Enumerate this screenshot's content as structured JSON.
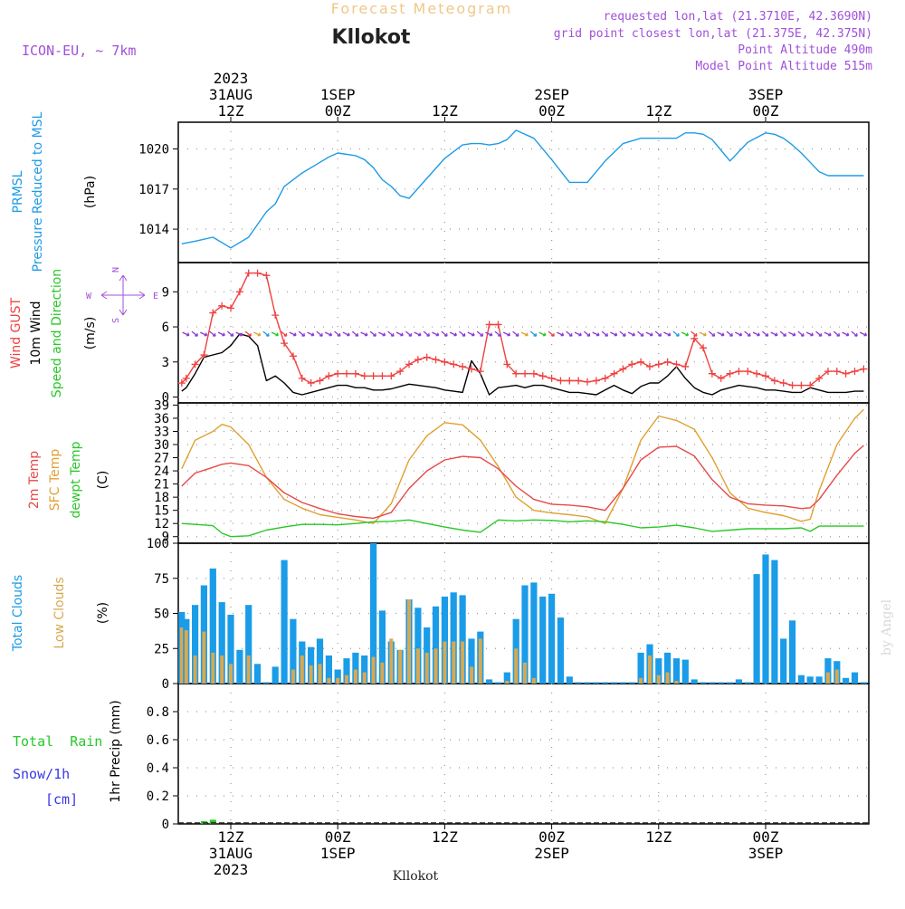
{
  "header": {
    "subtitle": "Forecast Meteogram",
    "location": "Kllokot",
    "model": "ICON-EU, ~ 7km",
    "requested": "requested lon,lat (21.3710E, 42.3690N)",
    "gridpoint": "grid point closest lon,lat (21.375E, 42.375N)",
    "point_altitude": "Point Altitude 490m",
    "model_altitude": "Model Point Altitude 515m",
    "footer_location": "Kllokot",
    "watermark": "by Angel"
  },
  "time_axis": {
    "ticks": [
      {
        "t": 0,
        "label": "12Z",
        "date": "31AUG",
        "year": "2023"
      },
      {
        "t": 12,
        "label": "00Z",
        "date": "1SEP"
      },
      {
        "t": 24,
        "label": "12Z"
      },
      {
        "t": 36,
        "label": "00Z",
        "date": "2SEP"
      },
      {
        "t": 48,
        "label": "12Z"
      },
      {
        "t": 60,
        "label": "00Z",
        "date": "3SEP"
      }
    ]
  },
  "panels": {
    "pressure": {
      "ylabel_color_1": "PRMSL",
      "ylabel_color_2": "Pressure Reduced to MSL",
      "unit": "(hPa)"
    },
    "wind": {
      "label_gust": "Wind GUST",
      "label_wind": "10m Wind",
      "label_dir": "Speed and Direction",
      "unit": "(m/s)",
      "compass_n": "N",
      "compass_s": "S",
      "compass_w": "W",
      "compass_e": "E"
    },
    "temp": {
      "label_2m": "2m Temp",
      "label_sfc": "SFC Temp",
      "label_dew": "dewpt Temp",
      "unit": "(C)"
    },
    "clouds": {
      "label_total": "Total Clouds",
      "label_low": "Low Clouds",
      "unit": "(%)"
    },
    "precip": {
      "label_rain": "Total  Rain",
      "label_snow": "Snow/1h",
      "label_snow_unit": "[cm]",
      "ylabel": "1hr Precip (mm)"
    }
  },
  "colors": {
    "pressure": "#1e9be6",
    "gust": "#f04040",
    "wind": "#000000",
    "t2m": "#e84848",
    "sfc": "#e0a030",
    "dew": "#28c828",
    "total_clouds": "#1a9ce8",
    "low_clouds": "#d8a850",
    "rain": "#28c828",
    "snow": "#3838e8",
    "arrow_purple": "#8c3cd0",
    "text_purple": "#a050d8",
    "subtitle": "#f0c888"
  },
  "chart_data": [
    {
      "type": "line",
      "title": "PRMSL",
      "ylabel": "(hPa)",
      "ylim": [
        1011.5,
        1022.0
      ],
      "yticks": [
        1014,
        1017,
        1020
      ],
      "x_hours": [
        -5.5,
        -4,
        -2,
        0,
        2,
        4,
        5,
        6,
        8,
        10,
        11,
        12,
        13,
        14,
        15,
        16,
        17,
        18,
        19,
        20,
        22,
        24,
        26,
        27,
        28,
        29,
        30,
        31,
        32,
        34,
        36,
        38,
        40,
        42,
        44,
        46,
        48,
        50,
        51,
        52,
        53,
        54,
        55,
        56,
        58,
        60,
        61,
        62,
        63,
        64,
        65,
        66,
        67,
        68,
        69,
        70,
        71
      ],
      "series": [
        {
          "name": "PRMSL",
          "values": [
            1012.9,
            1013.1,
            1013.4,
            1012.6,
            1013.4,
            1015.3,
            1015.9,
            1017.2,
            1018.2,
            1019.0,
            1019.4,
            1019.7,
            1019.6,
            1019.5,
            1019.2,
            1018.6,
            1017.7,
            1017.2,
            1016.5,
            1016.3,
            1017.8,
            1019.3,
            1020.3,
            1020.4,
            1020.4,
            1020.3,
            1020.4,
            1020.7,
            1021.4,
            1020.8,
            1019.2,
            1017.5,
            1017.5,
            1019.1,
            1020.4,
            1020.8,
            1020.8,
            1020.8,
            1021.2,
            1021.2,
            1021.1,
            1020.7,
            1019.9,
            1019.1,
            1020.5,
            1021.2,
            1021.1,
            1020.8,
            1020.3,
            1019.7,
            1019.0,
            1018.3,
            1018.0,
            1018.0,
            1018.0,
            1018.0,
            1018.0
          ]
        }
      ]
    },
    {
      "type": "line",
      "title": "Wind",
      "ylabel": "(m/s)",
      "ylim": [
        -0.5,
        11.5
      ],
      "yticks": [
        0,
        3,
        6,
        9
      ],
      "x_hours": [
        -5.5,
        -5,
        -4,
        -3,
        -2,
        -1,
        0,
        1,
        2,
        3,
        4,
        5,
        6,
        7,
        8,
        9,
        10,
        11,
        12,
        13,
        14,
        15,
        16,
        17,
        18,
        19,
        20,
        21,
        22,
        23,
        24,
        25,
        26,
        27,
        28,
        29,
        30,
        31,
        32,
        33,
        34,
        35,
        36,
        37,
        38,
        39,
        40,
        41,
        42,
        43,
        44,
        45,
        46,
        47,
        48,
        49,
        50,
        51,
        52,
        53,
        54,
        55,
        56,
        57,
        58,
        59,
        60,
        61,
        62,
        63,
        64,
        65,
        66,
        67,
        68,
        69,
        70,
        71
      ],
      "series": [
        {
          "name": "Wind GUST",
          "values": [
            1.2,
            1.6,
            2.8,
            3.6,
            7.2,
            7.8,
            7.6,
            9.0,
            10.6,
            10.6,
            10.4,
            7.0,
            4.6,
            3.5,
            1.6,
            1.2,
            1.4,
            1.8,
            2.0,
            2.0,
            2.0,
            1.8,
            1.8,
            1.8,
            1.8,
            2.2,
            2.8,
            3.2,
            3.4,
            3.2,
            3.0,
            2.8,
            2.6,
            2.4,
            2.2,
            6.2,
            6.2,
            2.8,
            2.0,
            2.0,
            2.0,
            1.8,
            1.6,
            1.4,
            1.4,
            1.4,
            1.3,
            1.4,
            1.6,
            2.0,
            2.4,
            2.8,
            3.0,
            2.6,
            2.8,
            3.0,
            2.8,
            2.6,
            5.0,
            4.2,
            2.0,
            1.6,
            2.0,
            2.2,
            2.2,
            2.0,
            1.8,
            1.4,
            1.2,
            1.0,
            1.0,
            1.0,
            1.6,
            2.2,
            2.2,
            2.0,
            2.2,
            2.4
          ]
        },
        {
          "name": "10m Wind",
          "values": [
            0.5,
            0.8,
            2.0,
            3.4,
            3.6,
            3.8,
            4.4,
            5.4,
            5.2,
            4.4,
            1.4,
            1.8,
            1.2,
            0.4,
            0.2,
            0.4,
            0.6,
            0.8,
            1.0,
            1.0,
            0.8,
            0.8,
            0.6,
            0.6,
            0.7,
            0.9,
            1.1,
            1.0,
            0.9,
            0.8,
            0.6,
            0.5,
            0.4,
            3.1,
            2.0,
            0.2,
            0.8,
            0.9,
            1.0,
            0.8,
            1.0,
            1.0,
            0.8,
            0.6,
            0.4,
            0.4,
            0.3,
            0.2,
            0.6,
            1.0,
            0.6,
            0.3,
            0.9,
            1.2,
            1.2,
            1.8,
            2.6,
            1.6,
            0.8,
            0.4,
            0.2,
            0.6,
            0.8,
            1.0,
            0.9,
            0.8,
            0.6,
            0.6,
            0.5,
            0.4,
            0.4,
            0.8,
            0.6,
            0.4,
            0.4,
            0.4,
            0.5,
            0.5
          ]
        }
      ]
    },
    {
      "type": "line",
      "title": "Temperature",
      "ylabel": "(C)",
      "ylim": [
        7.5,
        39.5
      ],
      "yticks": [
        9,
        12,
        15,
        18,
        21,
        24,
        27,
        30,
        33,
        36,
        39
      ],
      "x_hours": [
        -5.5,
        -4,
        -2,
        -1,
        0,
        2,
        4,
        6,
        8,
        10,
        12,
        14,
        16,
        18,
        20,
        22,
        24,
        26,
        28,
        30,
        32,
        34,
        36,
        38,
        40,
        42,
        44,
        46,
        48,
        50,
        52,
        54,
        56,
        58,
        60,
        62,
        64,
        65,
        66,
        68,
        70,
        71
      ],
      "series": [
        {
          "name": "2m Temp",
          "values": [
            20.5,
            23.5,
            24.8,
            25.5,
            25.8,
            25.2,
            22.5,
            19.0,
            16.8,
            15.4,
            14.2,
            13.6,
            13.2,
            14.5,
            20.0,
            24.0,
            26.5,
            27.3,
            27.0,
            24.5,
            20.5,
            17.5,
            16.4,
            16.2,
            15.8,
            15.0,
            20.0,
            26.5,
            29.4,
            29.6,
            27.4,
            22.0,
            18.0,
            16.5,
            16.2,
            16.0,
            15.4,
            15.6,
            17.5,
            23.0,
            28.0,
            29.8
          ]
        },
        {
          "name": "SFC Temp",
          "values": [
            24.5,
            31.0,
            33.0,
            34.6,
            34.0,
            30.0,
            22.5,
            17.5,
            15.5,
            14.0,
            13.4,
            12.8,
            12.0,
            16.5,
            26.5,
            32.0,
            35.0,
            34.5,
            31.0,
            25.0,
            18.0,
            15.0,
            14.4,
            14.0,
            13.5,
            12.0,
            20.0,
            31.0,
            36.5,
            35.5,
            33.5,
            27.0,
            19.0,
            15.5,
            14.5,
            13.8,
            12.5,
            13.0,
            19.5,
            30.0,
            36.0,
            38.0
          ]
        },
        {
          "name": "dewpt Temp",
          "values": [
            12.0,
            11.8,
            11.5,
            9.8,
            9.0,
            9.2,
            10.5,
            11.2,
            11.8,
            11.8,
            11.7,
            12.0,
            12.4,
            12.5,
            12.8,
            12.0,
            11.2,
            10.5,
            10.0,
            12.8,
            12.6,
            12.8,
            12.7,
            12.4,
            12.6,
            12.4,
            11.8,
            11.0,
            11.2,
            11.6,
            11.0,
            10.2,
            10.5,
            10.8,
            10.8,
            10.8,
            11.0,
            10.2,
            11.4,
            11.4,
            11.4,
            11.4
          ]
        }
      ]
    },
    {
      "type": "bar",
      "title": "Clouds",
      "ylabel": "(%)",
      "ylim": [
        0,
        100
      ],
      "yticks": [
        0,
        25,
        50,
        75,
        100
      ],
      "x_hours": [
        -5.5,
        -5,
        -4,
        -3,
        -2,
        -1,
        0,
        1,
        2,
        3,
        4,
        5,
        6,
        7,
        8,
        9,
        10,
        11,
        12,
        13,
        14,
        15,
        16,
        17,
        18,
        19,
        20,
        21,
        22,
        23,
        24,
        25,
        26,
        27,
        28,
        29,
        30,
        31,
        32,
        33,
        34,
        35,
        36,
        37,
        38,
        39,
        40,
        41,
        42,
        43,
        44,
        45,
        46,
        47,
        48,
        49,
        50,
        51,
        52,
        53,
        54,
        55,
        56,
        57,
        58,
        59,
        60,
        61,
        62,
        63,
        64,
        65,
        66,
        67,
        68,
        69,
        70,
        71
      ],
      "series": [
        {
          "name": "Total Clouds",
          "values": [
            51,
            46,
            56,
            70,
            82,
            58,
            49,
            24,
            56,
            14,
            0,
            12,
            88,
            46,
            30,
            26,
            32,
            20,
            10,
            18,
            22,
            20,
            100,
            52,
            30,
            24,
            60,
            54,
            40,
            55,
            62,
            65,
            63,
            32,
            37,
            3,
            0,
            8,
            46,
            70,
            72,
            62,
            64,
            47,
            5,
            0,
            0,
            0,
            0,
            0,
            0,
            0,
            22,
            28,
            18,
            22,
            18,
            17,
            3,
            0,
            0,
            0,
            0,
            3,
            1,
            78,
            92,
            88,
            32,
            45,
            6,
            5,
            5,
            18,
            16,
            4,
            8,
            0
          ]
        },
        {
          "name": "Low Clouds",
          "values": [
            40,
            38,
            20,
            37,
            22,
            20,
            14,
            0,
            20,
            0,
            0,
            0,
            0,
            10,
            20,
            13,
            14,
            4,
            4,
            6,
            10,
            8,
            19,
            15,
            32,
            24,
            60,
            25,
            22,
            25,
            30,
            30,
            30,
            12,
            32,
            0,
            0,
            2,
            25,
            15,
            4,
            0,
            0,
            0,
            0,
            0,
            0,
            0,
            0,
            0,
            0,
            0,
            4,
            20,
            6,
            8,
            2,
            0,
            0,
            0,
            0,
            0,
            0,
            0,
            0,
            0,
            0,
            0,
            0,
            0,
            0,
            0,
            0,
            8,
            10,
            0,
            0,
            0
          ]
        }
      ]
    },
    {
      "type": "bar",
      "title": "Precipitation",
      "ylabel": "1hr Precip (mm)",
      "ylim": [
        0,
        1.0
      ],
      "yticks": [
        0,
        0.2,
        0.4,
        0.6,
        0.8
      ],
      "x_hours": [
        -3,
        -2
      ],
      "series": [
        {
          "name": "Total Rain",
          "values": [
            0.02,
            0.03
          ]
        }
      ]
    }
  ]
}
